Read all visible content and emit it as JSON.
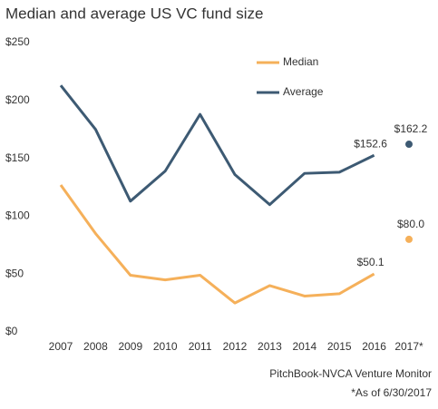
{
  "chart_data": {
    "type": "line",
    "title": "Median and average US VC fund size",
    "categories": [
      "2007",
      "2008",
      "2009",
      "2010",
      "2011",
      "2012",
      "2013",
      "2014",
      "2015",
      "2016",
      "2017*"
    ],
    "series": [
      {
        "name": "Median",
        "color": "#f5b05a",
        "values": [
          127,
          85,
          49,
          45,
          49,
          25,
          40,
          31,
          33,
          50.1,
          null
        ],
        "value_labels": [
          null,
          null,
          null,
          null,
          null,
          null,
          null,
          null,
          null,
          "$50.1",
          null
        ]
      },
      {
        "name": "Average",
        "color": "#3d5a73",
        "values": [
          213,
          175,
          113,
          139,
          188,
          136,
          110,
          137,
          138,
          152.6,
          null
        ],
        "value_labels": [
          null,
          null,
          null,
          null,
          null,
          null,
          null,
          null,
          null,
          "$152.6",
          null
        ]
      }
    ],
    "points": [
      {
        "x": "2017*",
        "value": 162.2,
        "label": "$162.2",
        "color": "#3d5a73"
      },
      {
        "x": "2017*",
        "value": 80.0,
        "label": "$80.0",
        "color": "#f5b05a"
      }
    ],
    "ylim": [
      0,
      250
    ],
    "yticks": [
      {
        "value": 0,
        "label": "$0"
      },
      {
        "value": 50,
        "label": "$50"
      },
      {
        "value": 100,
        "label": "$100"
      },
      {
        "value": 150,
        "label": "$150"
      },
      {
        "value": 200,
        "label": "$200"
      },
      {
        "value": 250,
        "label": "$250"
      }
    ],
    "grid": false,
    "source": "PitchBook-NVCA Venture Monitor",
    "footnote": "*As of 6/30/2017"
  }
}
